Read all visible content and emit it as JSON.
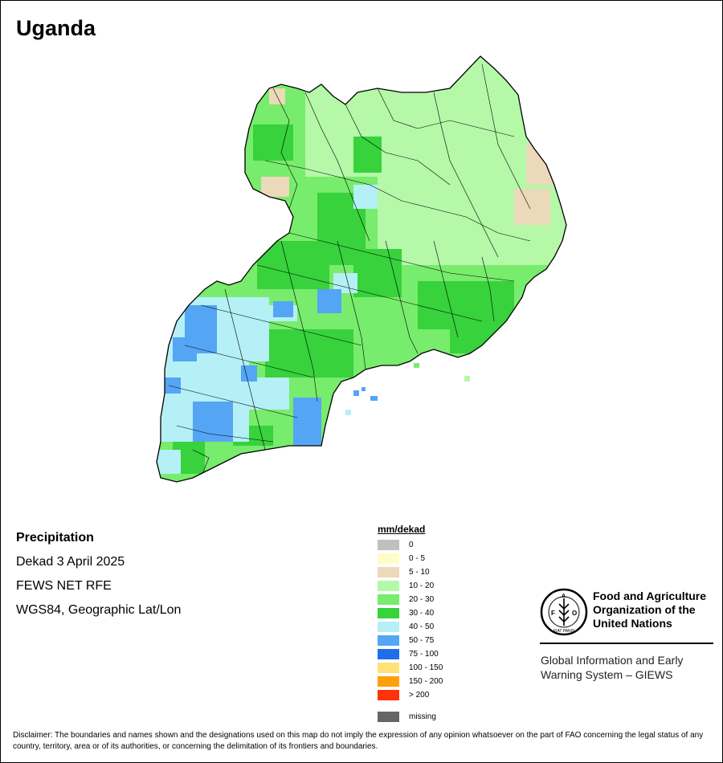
{
  "map": {
    "title": "Uganda",
    "info": {
      "variable": "Precipitation",
      "period": "Dekad 3 April 2025",
      "source": "FEWS NET RFE",
      "projection": "WGS84, Geographic Lat/Lon"
    },
    "legend": {
      "title": "mm/dekad",
      "items": [
        {
          "label": "0",
          "color": "#c0c0c0"
        },
        {
          "label": "0 - 5",
          "color": "#fffcc8"
        },
        {
          "label": "5 - 10",
          "color": "#ecd9b9"
        },
        {
          "label": "10 - 20",
          "color": "#b4f8a8"
        },
        {
          "label": "20 - 30",
          "color": "#78ec6c"
        },
        {
          "label": "30 - 40",
          "color": "#37d23c"
        },
        {
          "label": "40 - 50",
          "color": "#b4f0f5"
        },
        {
          "label": "50 - 75",
          "color": "#55a5f5"
        },
        {
          "label": "75 - 100",
          "color": "#1e6eeb"
        },
        {
          "label": "100 - 150",
          "color": "#ffe178"
        },
        {
          "label": "150 - 200",
          "color": "#ffa00a"
        },
        {
          "label": "> 200",
          "color": "#ff320a"
        },
        {
          "label": "missing",
          "color": "#666666"
        }
      ]
    },
    "organization": {
      "logo_text": "FAO",
      "logo_motto": "FIAT PANIS",
      "name_line1": "Food and Agriculture",
      "name_line2": "Organization of the",
      "name_line3": "United Nations",
      "system_line1": "Global Information and Early",
      "system_line2": "Warning System – GIEWS"
    },
    "disclaimer": "Disclaimer: The boundaries and names shown and the designations used on this map do not imply the expression of any opinion whatsoever on the part of FAO concerning the legal status of any country, territory, area or of its authorities, or concerning the delimitation of its frontiers and boundaries."
  }
}
